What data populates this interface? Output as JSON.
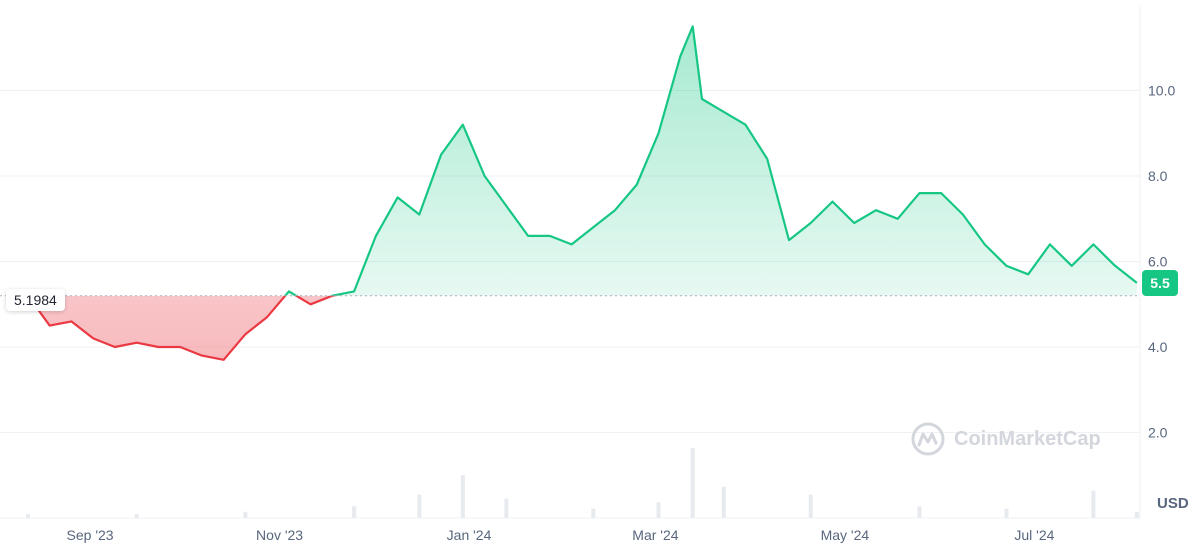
{
  "chart_data": {
    "type": "area",
    "x_axis": {
      "tick_labels": [
        "Sep '23",
        "Nov '23",
        "Jan '24",
        "Mar '24",
        "May '24",
        "Jul '24"
      ]
    },
    "y_axis": {
      "tick_labels": [
        "2.0",
        "4.0",
        "6.0",
        "8.0",
        "10.0"
      ],
      "ticks": [
        2,
        4,
        6,
        8,
        10
      ],
      "range": [
        0,
        12
      ]
    },
    "currency": "USD",
    "baseline": {
      "label": "5.1984",
      "value": 5.1984
    },
    "current_price": {
      "label": "5.5",
      "value": 5.5
    },
    "grid": true,
    "series": [
      {
        "x": [
          "2023-08-12",
          "2023-08-19",
          "2023-08-26",
          "2023-09-02",
          "2023-09-09",
          "2023-09-16",
          "2023-09-23",
          "2023-09-30",
          "2023-10-07",
          "2023-10-14",
          "2023-10-21",
          "2023-10-28",
          "2023-11-04",
          "2023-11-11",
          "2023-11-18",
          "2023-11-25",
          "2023-12-02",
          "2023-12-09",
          "2023-12-16",
          "2023-12-23",
          "2023-12-30",
          "2024-01-06",
          "2024-01-13",
          "2024-01-20",
          "2024-01-27",
          "2024-02-03",
          "2024-02-10",
          "2024-02-17",
          "2024-02-24",
          "2024-03-02",
          "2024-03-09",
          "2024-03-13",
          "2024-03-16",
          "2024-03-23",
          "2024-03-30",
          "2024-04-06",
          "2024-04-13",
          "2024-04-20",
          "2024-04-27",
          "2024-05-04",
          "2024-05-11",
          "2024-05-18",
          "2024-05-25",
          "2024-06-01",
          "2024-06-08",
          "2024-06-15",
          "2024-06-22",
          "2024-06-29",
          "2024-07-06",
          "2024-07-13",
          "2024-07-20",
          "2024-07-27",
          "2024-08-03"
        ],
        "y": [
          5.2,
          4.5,
          4.6,
          4.2,
          4.0,
          4.1,
          4.0,
          4.0,
          3.8,
          3.7,
          4.3,
          4.7,
          5.3,
          5.0,
          5.2,
          5.3,
          6.6,
          7.5,
          7.1,
          8.5,
          9.2,
          8.0,
          7.3,
          6.6,
          6.6,
          6.4,
          6.8,
          7.2,
          7.8,
          9.0,
          10.8,
          11.5,
          9.8,
          9.5,
          9.2,
          8.4,
          6.5,
          6.9,
          7.4,
          6.9,
          7.2,
          7.0,
          7.6,
          7.6,
          7.1,
          6.4,
          5.9,
          5.7,
          6.4,
          5.9,
          6.4,
          5.9,
          5.5
        ]
      }
    ],
    "volume": {
      "x": [
        "2023-08-12",
        "2023-09-16",
        "2023-10-21",
        "2023-11-25",
        "2023-12-16",
        "2023-12-30",
        "2024-01-13",
        "2024-02-10",
        "2024-03-02",
        "2024-03-13",
        "2024-03-23",
        "2024-04-20",
        "2024-05-25",
        "2024-06-22",
        "2024-07-20",
        "2024-08-03"
      ],
      "relative": [
        0.05,
        0.05,
        0.08,
        0.15,
        0.3,
        0.55,
        0.25,
        0.12,
        0.2,
        0.9,
        0.4,
        0.3,
        0.15,
        0.12,
        0.35,
        0.08
      ]
    }
  },
  "watermark": {
    "text": "CoinMarketCap",
    "icon": "coinmarketcap-logo-icon"
  },
  "colors": {
    "up": "#16c784",
    "down": "#ea3943",
    "grid": "#eff2f5",
    "axis_text": "#58667e"
  }
}
